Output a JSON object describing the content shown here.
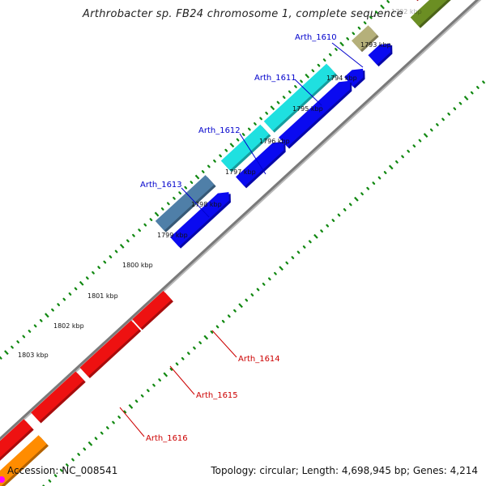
{
  "title": "Arthrobacter sp. FB24 chromosome 1, complete sequence",
  "footer": {
    "accession": "Accession: NC_008541",
    "summary": "Topology: circular; Length: 4,698,945 bp; Genes: 4,214"
  },
  "ticks": [
    "1792 kbp",
    "1793 kbp",
    "1794 kbp",
    "1795 kbp",
    "1796 kbp",
    "1797 kbp",
    "1798 kbp",
    "1799 kbp",
    "1800 kbp",
    "1801 kbp",
    "1802 kbp",
    "1803 kbp"
  ],
  "genes": [
    {
      "label": "Arth_1610",
      "strand": "forward",
      "color": "#b5b07a"
    },
    {
      "label": "Arth_1611",
      "strand": "forward",
      "color": "#1fe0e0"
    },
    {
      "label": "Arth_1612",
      "strand": "forward",
      "color": "#1fe0e0"
    },
    {
      "label": "Arth_1613",
      "strand": "forward",
      "color": "#4f7fa8"
    },
    {
      "label": "Arth_1614",
      "strand": "reverse",
      "color": "#ee1111"
    },
    {
      "label": "Arth_1615",
      "strand": "reverse",
      "color": "#ee1111"
    },
    {
      "label": "Arth_1616",
      "strand": "reverse",
      "color": "#ee1111"
    }
  ],
  "colors": {
    "forward_label": "#0000cc",
    "reverse_label": "#cc0000",
    "cds_forward": "#0a0af0",
    "cds_reverse": "#ee1111",
    "backbone": "#7a7a7a",
    "tick_dots": "#118811",
    "orange_feature": "#ff8c00",
    "olive_feature": "#6b8e23",
    "magenta_feature": "#ff00ff"
  }
}
